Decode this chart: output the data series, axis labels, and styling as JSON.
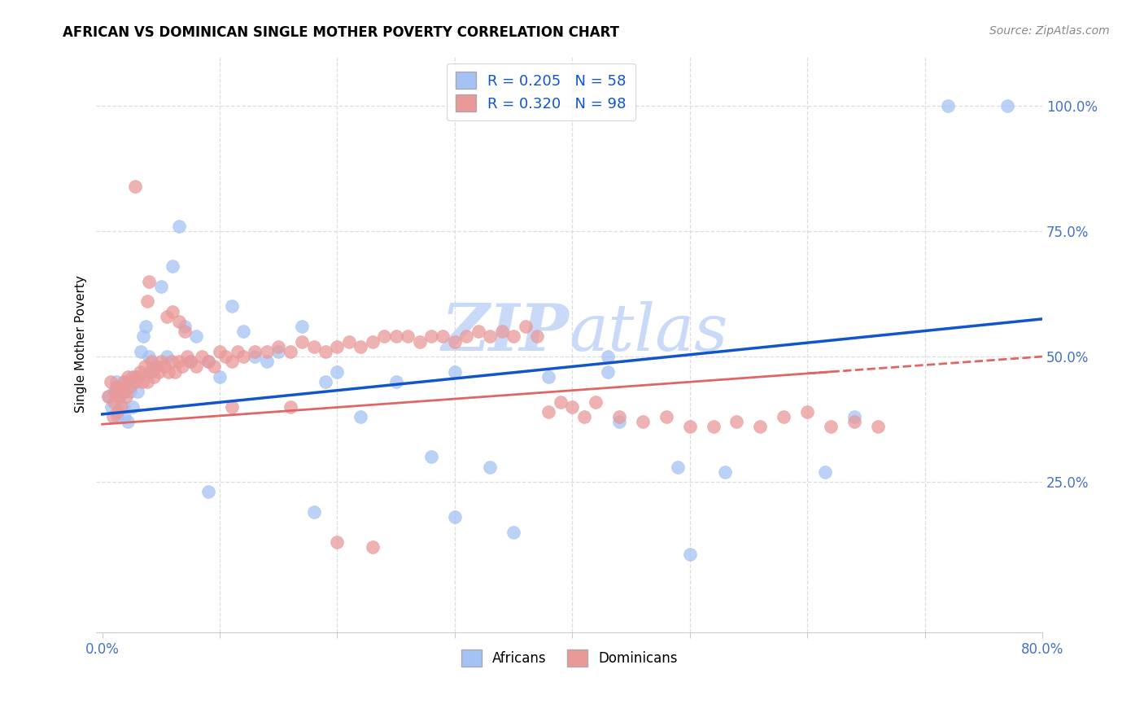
{
  "title": "AFRICAN VS DOMINICAN SINGLE MOTHER POVERTY CORRELATION CHART",
  "source": "Source: ZipAtlas.com",
  "ylabel": "Single Mother Poverty",
  "xlim": [
    0.0,
    0.8
  ],
  "ylim": [
    -0.05,
    1.1
  ],
  "ytick_positions": [
    0.25,
    0.5,
    0.75,
    1.0
  ],
  "ytick_labels": [
    "25.0%",
    "50.0%",
    "75.0%",
    "100.0%"
  ],
  "xtick_positions": [
    0.0,
    0.1,
    0.2,
    0.3,
    0.4,
    0.5,
    0.6,
    0.7,
    0.8
  ],
  "xtick_labels": [
    "0.0%",
    "",
    "",
    "",
    "",
    "",
    "",
    "",
    "80.0%"
  ],
  "african_color": "#a4c2f4",
  "dominican_color": "#ea9999",
  "trend_african_color": "#1155cc",
  "trend_dominican_color": "#e06666",
  "watermark_color": "#c9daf8",
  "legend_african_label": "R = 0.205   N = 58",
  "legend_dominican_label": "R = 0.320   N = 98",
  "legend_label_africans": "Africans",
  "legend_label_dominicans": "Dominicans",
  "africans_x": [
    0.005,
    0.008,
    0.01,
    0.012,
    0.013,
    0.015,
    0.016,
    0.018,
    0.019,
    0.02,
    0.022,
    0.024,
    0.026,
    0.028,
    0.03,
    0.033,
    0.035,
    0.037,
    0.04,
    0.042,
    0.045,
    0.05,
    0.055,
    0.06,
    0.065,
    0.07,
    0.075,
    0.08,
    0.09,
    0.1,
    0.11,
    0.12,
    0.13,
    0.14,
    0.15,
    0.17,
    0.19,
    0.2,
    0.22,
    0.25,
    0.28,
    0.3,
    0.33,
    0.38,
    0.43,
    0.44,
    0.49,
    0.53,
    0.615,
    0.64,
    0.72,
    0.77,
    0.3,
    0.35,
    0.5,
    0.43,
    0.18,
    0.09
  ],
  "africans_y": [
    0.42,
    0.4,
    0.43,
    0.45,
    0.38,
    0.42,
    0.44,
    0.4,
    0.38,
    0.45,
    0.37,
    0.43,
    0.4,
    0.46,
    0.43,
    0.51,
    0.54,
    0.56,
    0.5,
    0.47,
    0.48,
    0.64,
    0.5,
    0.68,
    0.76,
    0.56,
    0.49,
    0.54,
    0.49,
    0.46,
    0.6,
    0.55,
    0.5,
    0.49,
    0.51,
    0.56,
    0.45,
    0.47,
    0.38,
    0.45,
    0.3,
    0.47,
    0.28,
    0.46,
    0.5,
    0.37,
    0.28,
    0.27,
    0.27,
    0.38,
    1.0,
    1.0,
    0.18,
    0.15,
    0.105,
    0.47,
    0.19,
    0.23
  ],
  "dominicans_x": [
    0.005,
    0.007,
    0.009,
    0.01,
    0.011,
    0.012,
    0.013,
    0.014,
    0.015,
    0.016,
    0.018,
    0.019,
    0.02,
    0.022,
    0.024,
    0.026,
    0.028,
    0.03,
    0.032,
    0.034,
    0.036,
    0.038,
    0.04,
    0.042,
    0.044,
    0.046,
    0.048,
    0.05,
    0.053,
    0.056,
    0.059,
    0.062,
    0.065,
    0.068,
    0.072,
    0.075,
    0.08,
    0.085,
    0.09,
    0.095,
    0.1,
    0.105,
    0.11,
    0.115,
    0.12,
    0.13,
    0.14,
    0.15,
    0.16,
    0.17,
    0.18,
    0.19,
    0.2,
    0.21,
    0.22,
    0.23,
    0.24,
    0.25,
    0.26,
    0.27,
    0.28,
    0.29,
    0.3,
    0.31,
    0.32,
    0.33,
    0.34,
    0.35,
    0.36,
    0.37,
    0.38,
    0.39,
    0.4,
    0.41,
    0.42,
    0.44,
    0.46,
    0.48,
    0.5,
    0.52,
    0.54,
    0.56,
    0.58,
    0.6,
    0.62,
    0.64,
    0.66,
    0.028,
    0.04,
    0.038,
    0.11,
    0.16,
    0.2,
    0.23,
    0.055,
    0.06,
    0.065,
    0.07
  ],
  "dominicans_y": [
    0.42,
    0.45,
    0.38,
    0.41,
    0.43,
    0.44,
    0.39,
    0.42,
    0.44,
    0.4,
    0.45,
    0.43,
    0.42,
    0.46,
    0.44,
    0.46,
    0.45,
    0.46,
    0.47,
    0.45,
    0.48,
    0.45,
    0.47,
    0.49,
    0.46,
    0.48,
    0.47,
    0.49,
    0.48,
    0.47,
    0.49,
    0.47,
    0.49,
    0.48,
    0.5,
    0.49,
    0.48,
    0.5,
    0.49,
    0.48,
    0.51,
    0.5,
    0.49,
    0.51,
    0.5,
    0.51,
    0.51,
    0.52,
    0.51,
    0.53,
    0.52,
    0.51,
    0.52,
    0.53,
    0.52,
    0.53,
    0.54,
    0.54,
    0.54,
    0.53,
    0.54,
    0.54,
    0.53,
    0.54,
    0.55,
    0.54,
    0.55,
    0.54,
    0.56,
    0.54,
    0.39,
    0.41,
    0.4,
    0.38,
    0.41,
    0.38,
    0.37,
    0.38,
    0.36,
    0.36,
    0.37,
    0.36,
    0.38,
    0.39,
    0.36,
    0.37,
    0.36,
    0.84,
    0.65,
    0.61,
    0.4,
    0.4,
    0.13,
    0.12,
    0.58,
    0.59,
    0.57,
    0.55
  ]
}
